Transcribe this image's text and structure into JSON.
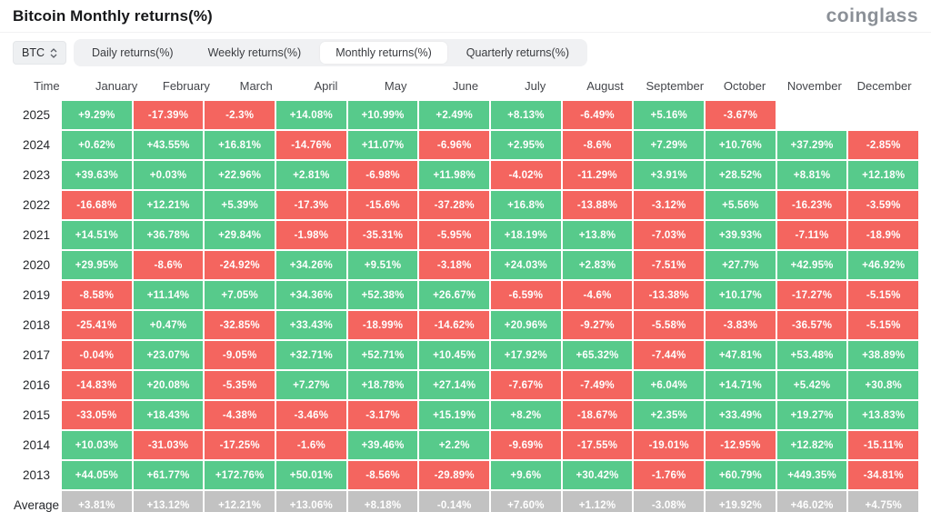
{
  "header": {
    "title": "Bitcoin Monthly returns(%)",
    "logo": "coinglass"
  },
  "toolbar": {
    "symbol_select": {
      "value": "BTC"
    },
    "tabs": [
      {
        "label": "Daily returns(%)",
        "active": false
      },
      {
        "label": "Weekly returns(%)",
        "active": false
      },
      {
        "label": "Monthly returns(%)",
        "active": true
      },
      {
        "label": "Quarterly returns(%)",
        "active": false
      }
    ]
  },
  "colors": {
    "positive": "#57ca8b",
    "negative": "#f4655f",
    "average": "#c2c2c2"
  },
  "table": {
    "time_header": "Time",
    "months": [
      "January",
      "February",
      "March",
      "April",
      "May",
      "June",
      "July",
      "August",
      "September",
      "October",
      "November",
      "December"
    ],
    "rows": [
      {
        "year": "2025",
        "values": [
          "+9.29%",
          "-17.39%",
          "-2.3%",
          "+14.08%",
          "+10.99%",
          "+2.49%",
          "+8.13%",
          "-6.49%",
          "+5.16%",
          "-3.67%",
          "",
          ""
        ]
      },
      {
        "year": "2024",
        "values": [
          "+0.62%",
          "+43.55%",
          "+16.81%",
          "-14.76%",
          "+11.07%",
          "-6.96%",
          "+2.95%",
          "-8.6%",
          "+7.29%",
          "+10.76%",
          "+37.29%",
          "-2.85%"
        ]
      },
      {
        "year": "2023",
        "values": [
          "+39.63%",
          "+0.03%",
          "+22.96%",
          "+2.81%",
          "-6.98%",
          "+11.98%",
          "-4.02%",
          "-11.29%",
          "+3.91%",
          "+28.52%",
          "+8.81%",
          "+12.18%"
        ]
      },
      {
        "year": "2022",
        "values": [
          "-16.68%",
          "+12.21%",
          "+5.39%",
          "-17.3%",
          "-15.6%",
          "-37.28%",
          "+16.8%",
          "-13.88%",
          "-3.12%",
          "+5.56%",
          "-16.23%",
          "-3.59%"
        ]
      },
      {
        "year": "2021",
        "values": [
          "+14.51%",
          "+36.78%",
          "+29.84%",
          "-1.98%",
          "-35.31%",
          "-5.95%",
          "+18.19%",
          "+13.8%",
          "-7.03%",
          "+39.93%",
          "-7.11%",
          "-18.9%"
        ]
      },
      {
        "year": "2020",
        "values": [
          "+29.95%",
          "-8.6%",
          "-24.92%",
          "+34.26%",
          "+9.51%",
          "-3.18%",
          "+24.03%",
          "+2.83%",
          "-7.51%",
          "+27.7%",
          "+42.95%",
          "+46.92%"
        ]
      },
      {
        "year": "2019",
        "values": [
          "-8.58%",
          "+11.14%",
          "+7.05%",
          "+34.36%",
          "+52.38%",
          "+26.67%",
          "-6.59%",
          "-4.6%",
          "-13.38%",
          "+10.17%",
          "-17.27%",
          "-5.15%"
        ]
      },
      {
        "year": "2018",
        "values": [
          "-25.41%",
          "+0.47%",
          "-32.85%",
          "+33.43%",
          "-18.99%",
          "-14.62%",
          "+20.96%",
          "-9.27%",
          "-5.58%",
          "-3.83%",
          "-36.57%",
          "-5.15%"
        ]
      },
      {
        "year": "2017",
        "values": [
          "-0.04%",
          "+23.07%",
          "-9.05%",
          "+32.71%",
          "+52.71%",
          "+10.45%",
          "+17.92%",
          "+65.32%",
          "-7.44%",
          "+47.81%",
          "+53.48%",
          "+38.89%"
        ]
      },
      {
        "year": "2016",
        "values": [
          "-14.83%",
          "+20.08%",
          "-5.35%",
          "+7.27%",
          "+18.78%",
          "+27.14%",
          "-7.67%",
          "-7.49%",
          "+6.04%",
          "+14.71%",
          "+5.42%",
          "+30.8%"
        ]
      },
      {
        "year": "2015",
        "values": [
          "-33.05%",
          "+18.43%",
          "-4.38%",
          "-3.46%",
          "-3.17%",
          "+15.19%",
          "+8.2%",
          "-18.67%",
          "+2.35%",
          "+33.49%",
          "+19.27%",
          "+13.83%"
        ]
      },
      {
        "year": "2014",
        "values": [
          "+10.03%",
          "-31.03%",
          "-17.25%",
          "-1.6%",
          "+39.46%",
          "+2.2%",
          "-9.69%",
          "-17.55%",
          "-19.01%",
          "-12.95%",
          "+12.82%",
          "-15.11%"
        ]
      },
      {
        "year": "2013",
        "values": [
          "+44.05%",
          "+61.77%",
          "+172.76%",
          "+50.01%",
          "-8.56%",
          "-29.89%",
          "+9.6%",
          "+30.42%",
          "-1.76%",
          "+60.79%",
          "+449.35%",
          "-34.81%"
        ]
      }
    ],
    "average": {
      "label": "Average",
      "values": [
        "+3.81%",
        "+13.12%",
        "+12.21%",
        "+13.06%",
        "+8.18%",
        "-0.14%",
        "+7.60%",
        "+1.12%",
        "-3.08%",
        "+19.92%",
        "+46.02%",
        "+4.75%"
      ]
    }
  }
}
